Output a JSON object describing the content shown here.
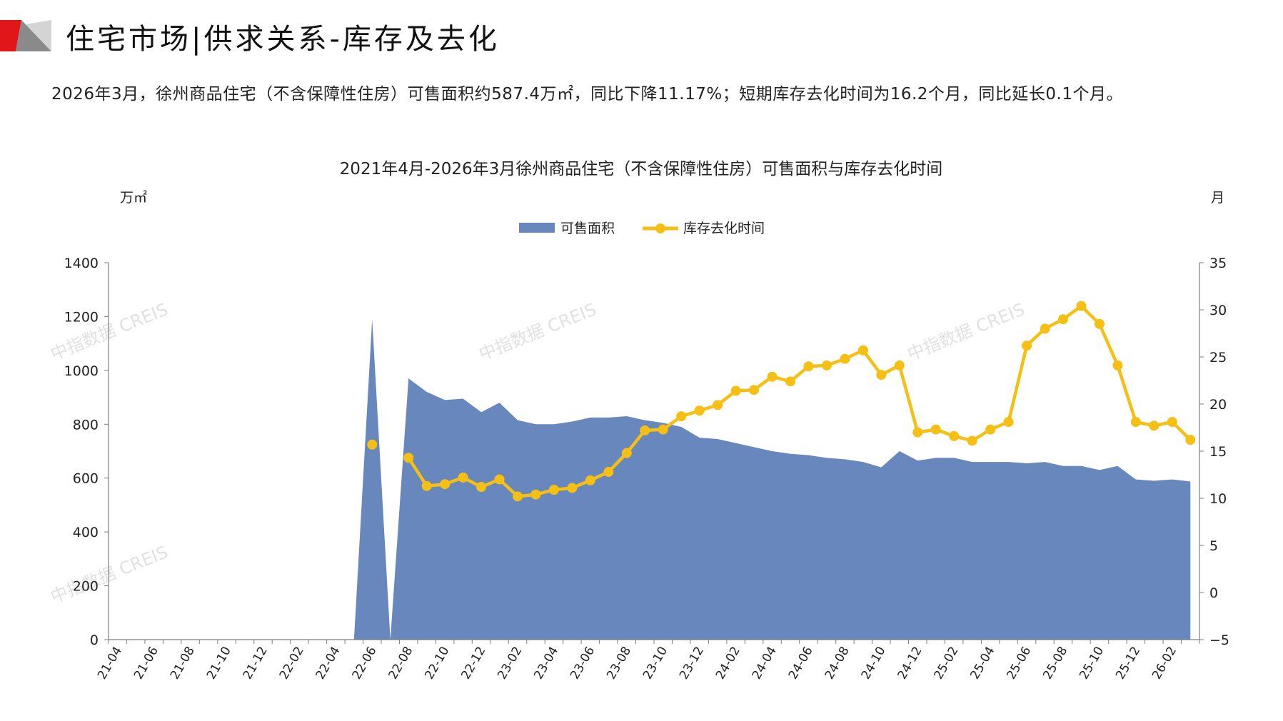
{
  "page": {
    "title": "住宅市场|供求关系-库存及去化",
    "summary": "2026年3月，徐州商品住宅（不含保障性住房）可售面积约587.4万㎡，同比下降11.17%；短期库存去化时间为16.2个月，同比延长0.1个月。",
    "watermark": "中指数据 CREIS",
    "colors": {
      "accent_red": "#e0161b",
      "logo_gray": "#8a8a8a"
    }
  },
  "chart_data": {
    "type": "area+line",
    "title": "2021年4月-2026年3月徐州商品住宅（不含保障性住房）可售面积与库存去化时间",
    "y_left_unit": "万㎡",
    "y_right_unit": "月",
    "ylim_left": [
      0,
      1400
    ],
    "ylim_right": [
      -5,
      35
    ],
    "yticks_left": [
      "0",
      "200",
      "400",
      "600",
      "800",
      "1000",
      "1200",
      "1400"
    ],
    "yticks_right": [
      "−5",
      "0",
      "5",
      "10",
      "15",
      "20",
      "25",
      "30",
      "35"
    ],
    "legend_position": "top-center",
    "grid": false,
    "x": [
      "21-04",
      "21-05",
      "21-06",
      "21-07",
      "21-08",
      "21-09",
      "21-10",
      "21-11",
      "21-12",
      "22-01",
      "22-02",
      "22-03",
      "22-04",
      "22-05",
      "22-06",
      "22-07",
      "22-08",
      "22-09",
      "22-10",
      "22-11",
      "22-12",
      "23-01",
      "23-02",
      "23-03",
      "23-04",
      "23-05",
      "23-06",
      "23-07",
      "23-08",
      "23-09",
      "23-10",
      "23-11",
      "23-12",
      "24-01",
      "24-02",
      "24-03",
      "24-04",
      "24-05",
      "24-06",
      "24-07",
      "24-08",
      "24-09",
      "24-10",
      "24-11",
      "24-12",
      "25-01",
      "25-02",
      "25-03",
      "25-04",
      "25-05",
      "25-06",
      "25-07",
      "25-08",
      "25-09",
      "25-10",
      "25-11",
      "25-12",
      "26-01",
      "26-02",
      "26-03"
    ],
    "x_tick_labels": [
      "21-04",
      "21-06",
      "21-08",
      "21-10",
      "21-12",
      "22-02",
      "22-04",
      "22-06",
      "22-08",
      "22-10",
      "22-12",
      "23-02",
      "23-04",
      "23-06",
      "23-08",
      "23-10",
      "23-12",
      "24-02",
      "24-04",
      "24-06",
      "24-08",
      "24-10",
      "24-12",
      "25-02",
      "25-04",
      "25-06",
      "25-08",
      "25-10",
      "25-12",
      "26-02"
    ],
    "series": [
      {
        "name": "可售面积",
        "kind": "area",
        "axis": "left",
        "color": "#6787bd",
        "values": [
          0,
          0,
          0,
          0,
          0,
          0,
          0,
          0,
          0,
          0,
          0,
          0,
          0,
          0,
          1190,
          0,
          970,
          920,
          890,
          895,
          845,
          880,
          815,
          800,
          800,
          810,
          825,
          825,
          830,
          815,
          805,
          790,
          750,
          745,
          730,
          715,
          700,
          690,
          685,
          675,
          670,
          660,
          640,
          700,
          665,
          675,
          675,
          660,
          660,
          660,
          655,
          660,
          645,
          645,
          630,
          645,
          595,
          590,
          595,
          587.4
        ]
      },
      {
        "name": "库存去化时间",
        "kind": "line",
        "axis": "right",
        "color": "#f5bf14",
        "values": [
          null,
          null,
          null,
          null,
          null,
          null,
          null,
          null,
          null,
          null,
          null,
          null,
          null,
          null,
          15.7,
          null,
          14.3,
          11.3,
          11.5,
          12.2,
          11.2,
          12.0,
          10.2,
          10.4,
          10.9,
          11.1,
          11.9,
          12.8,
          14.8,
          17.2,
          17.3,
          18.7,
          19.3,
          19.9,
          21.4,
          21.5,
          22.9,
          22.4,
          24.0,
          24.1,
          24.8,
          25.7,
          23.1,
          24.1,
          17.0,
          17.3,
          16.6,
          16.1,
          17.3,
          18.1,
          26.2,
          28.0,
          29.0,
          30.4,
          28.5,
          24.1,
          18.1,
          17.7,
          18.1,
          16.2
        ]
      }
    ]
  }
}
